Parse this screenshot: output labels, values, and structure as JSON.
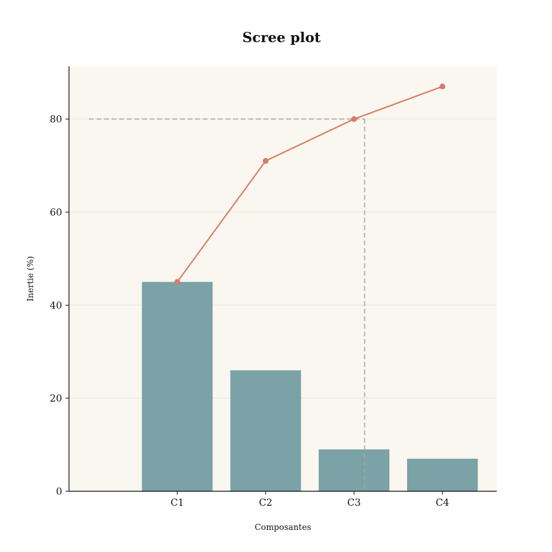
{
  "chart_data": {
    "type": "bar",
    "title": "Scree plot",
    "xlabel": "Composantes",
    "ylabel": "Inertie (%)",
    "categories": [
      "C1",
      "C2",
      "C3",
      "C4"
    ],
    "series": [
      {
        "type": "bar",
        "values": [
          45,
          26,
          9,
          7
        ]
      },
      {
        "type": "line",
        "values": [
          45,
          71,
          80,
          87
        ]
      }
    ],
    "reference_lines": [
      {
        "orientation": "horizontal",
        "y": 80
      },
      {
        "orientation": "vertical",
        "x": 3.12
      }
    ],
    "ylim": [
      0,
      91.35
    ],
    "yticks": [
      0,
      20,
      40,
      60,
      80
    ],
    "grid": true,
    "colors": {
      "plot_background": "#faf7f0",
      "bar": "#7aa2a7",
      "line": "#d67d66",
      "reference": "#a9a59c",
      "grid": "#e8e5dc"
    }
  }
}
